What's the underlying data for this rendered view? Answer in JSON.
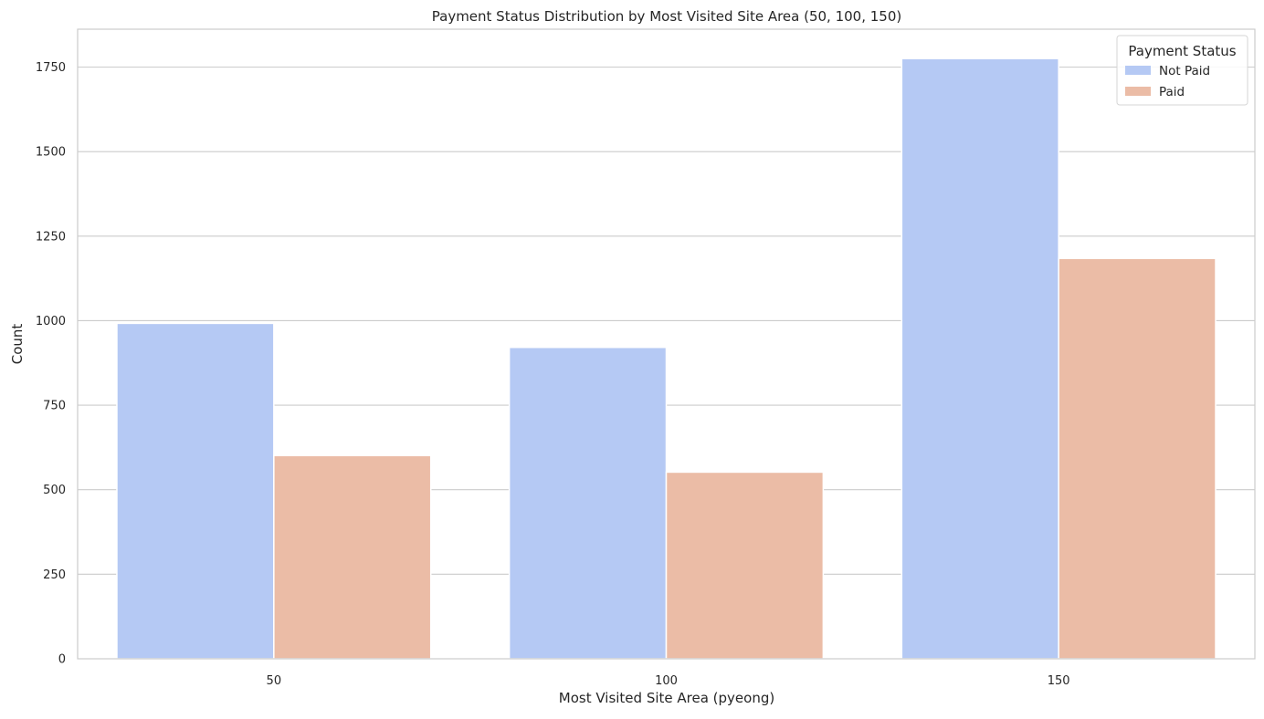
{
  "chart_data": {
    "type": "bar",
    "title": "Payment Status Distribution by Most Visited Site Area (50, 100, 150)",
    "xlabel": "Most Visited Site Area (pyeong)",
    "ylabel": "Count",
    "categories": [
      "50",
      "100",
      "150"
    ],
    "series": [
      {
        "name": "Not Paid",
        "values": [
          992,
          921,
          1775
        ],
        "color": "#b5c9f4"
      },
      {
        "name": "Paid",
        "values": [
          601,
          552,
          1184
        ],
        "color": "#ebbca6"
      }
    ],
    "ylim": [
      0,
      1862
    ],
    "yticks": [
      0,
      250,
      500,
      750,
      1000,
      1250,
      1500,
      1750
    ],
    "grid": "horizontal",
    "legend": {
      "title": "Payment Status",
      "placement": "top-right"
    }
  }
}
